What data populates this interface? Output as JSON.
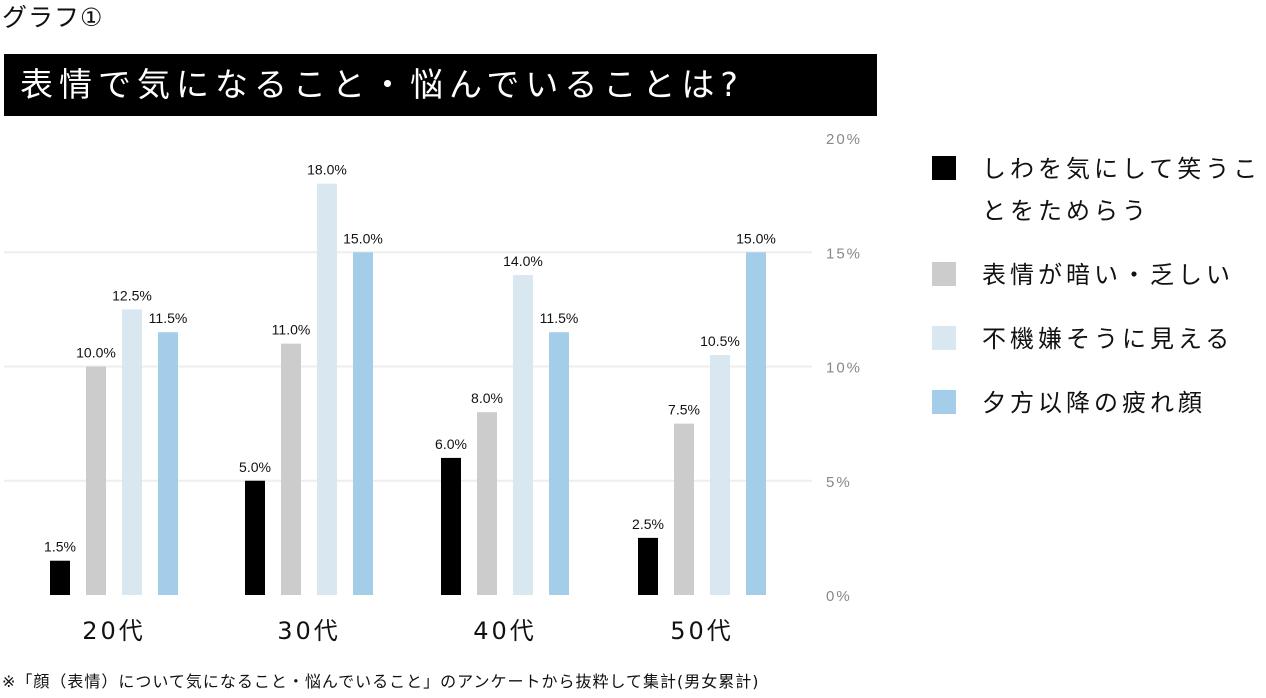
{
  "graph_label": "グラフ①",
  "title": "表情で気になること・悩んでいることは?",
  "footnote": "※「顔（表情）について気になること・悩んでいること」のアンケートから抜粋して集計(男女累計)",
  "colors": {
    "series1": "#000000",
    "series2": "#cccccc",
    "series3": "#d9e7f0",
    "series4": "#a3cde9",
    "grid": "#eeeeee"
  },
  "chart_data": {
    "type": "bar",
    "title": "表情で気になること・悩んでいることは?",
    "categories": [
      "20代",
      "30代",
      "40代",
      "50代"
    ],
    "series": [
      {
        "name": "しわを気にして笑うことをためらう",
        "values": [
          1.5,
          5.0,
          6.0,
          2.5
        ],
        "labels": [
          "1.5%",
          "5.0%",
          "6.0%",
          "2.5%"
        ]
      },
      {
        "name": "表情が暗い・乏しい",
        "values": [
          10.0,
          11.0,
          8.0,
          7.5
        ],
        "labels": [
          "10.0%",
          "11.0%",
          "8.0%",
          "7.5%"
        ]
      },
      {
        "name": "不機嫌そうに見える",
        "values": [
          12.5,
          18.0,
          14.0,
          10.5
        ],
        "labels": [
          "12.5%",
          "18.0%",
          "14.0%",
          "10.5%"
        ]
      },
      {
        "name": "夕方以降の疲れ顔",
        "values": [
          11.5,
          15.0,
          11.5,
          15.0
        ],
        "labels": [
          "11.5%",
          "15.0%",
          "11.5%",
          "15.0%"
        ]
      }
    ],
    "ylim": [
      0,
      20
    ],
    "y_ticks": [
      0,
      5,
      10,
      15,
      20
    ],
    "y_tick_labels": [
      "0%",
      "5%",
      "10%",
      "15%",
      "20%"
    ],
    "grid": true,
    "legend_position": "right"
  }
}
